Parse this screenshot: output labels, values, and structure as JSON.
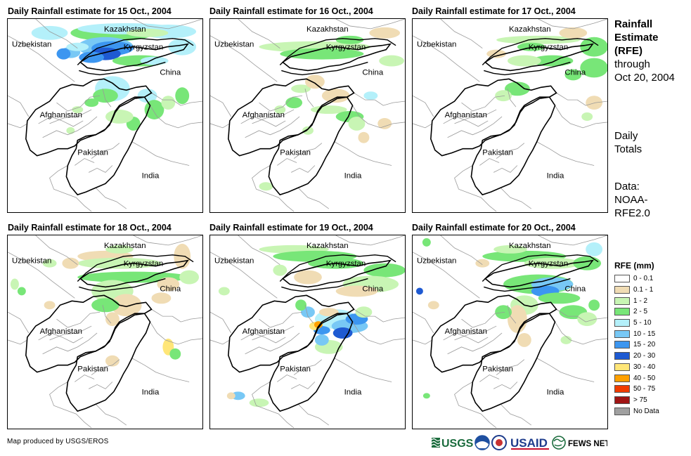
{
  "panels": [
    {
      "title": "Daily Rainfall estimate for 15 Oct., 2004",
      "day": "15"
    },
    {
      "title": "Daily Rainfall estimate for 16 Oct., 2004",
      "day": "16"
    },
    {
      "title": "Daily Rainfall estimate for 17 Oct., 2004",
      "day": "17"
    },
    {
      "title": "Daily Rainfall estimate for 18 Oct., 2004",
      "day": "18"
    },
    {
      "title": "Daily Rainfall estimate for 19 Oct., 2004",
      "day": "19"
    },
    {
      "title": "Daily Rainfall estimate for 20 Oct., 2004",
      "day": "20"
    }
  ],
  "map_labels": {
    "kazakhstan": "Kazakhstan",
    "uzbekistan": "Uzbekistan",
    "kyrgyzstan": "Kyrgyzstan",
    "china": "China",
    "afghanistan": "Afghanistan",
    "pakistan": "Pakistan",
    "india": "India"
  },
  "side": {
    "title_line1": "Rainfall",
    "title_line2": "Estimate",
    "title_line3": "(RFE)",
    "through": "through",
    "date": "Oct 20, 2004",
    "daily1": "Daily",
    "daily2": "Totals",
    "data1": "Data:",
    "data2": "NOAA-",
    "data3": "RFE2.0"
  },
  "legend": {
    "title": "RFE (mm)",
    "items": [
      {
        "label": "0 - 0.1",
        "color": "#ffffff"
      },
      {
        "label": "0.1 - 1",
        "color": "#f0dcb4"
      },
      {
        "label": "1 - 2",
        "color": "#c8f5b4"
      },
      {
        "label": "2 - 5",
        "color": "#78e678"
      },
      {
        "label": "5 - 10",
        "color": "#b4f0fa"
      },
      {
        "label": "10 - 15",
        "color": "#78c8f5"
      },
      {
        "label": "15 - 20",
        "color": "#3c96f0"
      },
      {
        "label": "20 - 30",
        "color": "#1e5ad2"
      },
      {
        "label": "30 - 40",
        "color": "#ffe678"
      },
      {
        "label": "40 - 50",
        "color": "#ffa000"
      },
      {
        "label": "50 - 75",
        "color": "#f03c00"
      },
      {
        "label": "> 75",
        "color": "#a01414"
      },
      {
        "label": "No Data",
        "color": "#a0a0a0"
      }
    ]
  },
  "credit": "Map produced by USGS/EROS",
  "logos": {
    "usgs": "USGS",
    "usaid": "USAID",
    "fewsnet": "FEWS NET"
  }
}
